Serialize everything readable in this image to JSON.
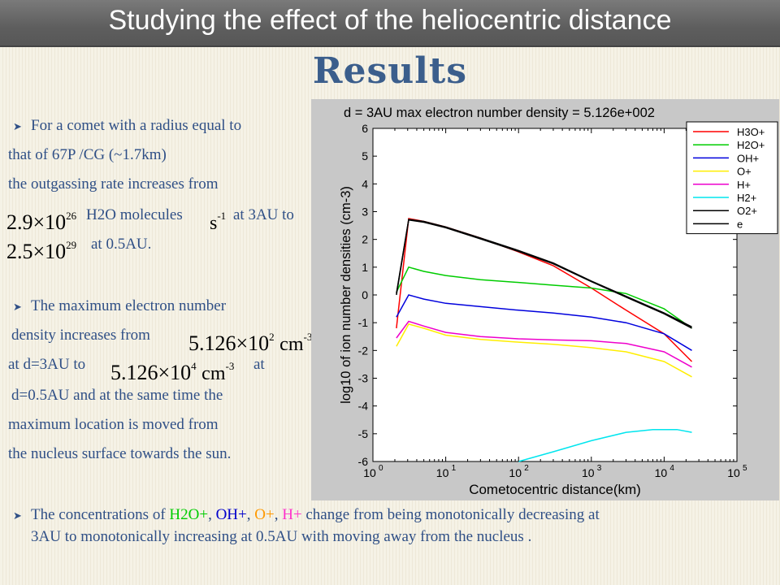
{
  "header": {
    "title": "Studying the effect of the heliocentric distance"
  },
  "heading": "Results",
  "bullets": {
    "b1": {
      "l1": "For a comet with a radius equal to",
      "l2": "that of  67P /CG (~1.7km)",
      "l3": "the outgassing rate increases from",
      "f1": {
        "mantissa": "2.9",
        "exp": "26"
      },
      "l4a": "H2O molecules",
      "unit_s": "s",
      "unit_s_exp": "-1",
      "l4b": "at 3AU to",
      "f2": {
        "mantissa": "2.5",
        "exp": "29"
      },
      "l5": "at 0.5AU."
    },
    "b2": {
      "l1": "The maximum electron  number",
      "l2": "density increases from",
      "f1": {
        "mantissa": "5.126",
        "exp": "2"
      },
      "unit": "cm",
      "unit_exp": "-3",
      "l3a": "at d=3AU to",
      "f2": {
        "mantissa": "5.126",
        "exp": "4"
      },
      "l3b": "at",
      "l4": "d=0.5AU and at the same time the",
      "l5": "maximum location is moved from",
      "l6": "the nucleus surface towards the sun."
    },
    "b3": {
      "pre": "The concentrations of",
      "sp1": "H2O+",
      "sep1": ",",
      "sp2": "OH+",
      "sep2": ",",
      "sp3": "O+",
      "sep3": ",",
      "sp4": "H+",
      "post": "change from being monotonically decreasing at",
      "line2": "3AU to monotonically increasing at 0.5AU with moving away from the nucleus ."
    }
  },
  "colors": {
    "title_bg": "#666666",
    "heading": "#3b5e8c",
    "body_text": "#2f4f86",
    "H2O+": "#00cc00",
    "OH+": "#0000cc",
    "O+": "#ff9900",
    "H+": "#ff33cc"
  },
  "chart_data": {
    "type": "line",
    "title": "d = 3AU   max electron number density = 5.126e+002",
    "xlabel": "Cometocentric distance(km)",
    "ylabel": "log10 of ion number densities (cm-3)",
    "x_scale": "log",
    "xlim": [
      1,
      100000
    ],
    "ylim": [
      -6,
      6
    ],
    "x_tick_exponents": [
      "0",
      "1",
      "2",
      "3",
      "4",
      "5"
    ],
    "x_tick_base": "10",
    "y_ticks": [
      "-6",
      "-5",
      "-4",
      "-3",
      "-2",
      "-1",
      "0",
      "1",
      "2",
      "3",
      "4",
      "5",
      "6"
    ],
    "grid": false,
    "legend_position": "top-right",
    "series": [
      {
        "name": "H3O+",
        "color": "#ff0000",
        "points": [
          [
            2.1,
            -1.2
          ],
          [
            3.1,
            2.75
          ],
          [
            5,
            2.65
          ],
          [
            10,
            2.45
          ],
          [
            30,
            2.05
          ],
          [
            100,
            1.55
          ],
          [
            300,
            1.05
          ],
          [
            1000,
            0.25
          ],
          [
            3000,
            -0.55
          ],
          [
            10000,
            -1.4
          ],
          [
            24000,
            -2.4
          ]
        ]
      },
      {
        "name": "H2O+",
        "color": "#00cc00",
        "points": [
          [
            2.1,
            0.1
          ],
          [
            3.1,
            1.0
          ],
          [
            5,
            0.85
          ],
          [
            10,
            0.7
          ],
          [
            30,
            0.55
          ],
          [
            100,
            0.45
          ],
          [
            300,
            0.35
          ],
          [
            1000,
            0.25
          ],
          [
            3000,
            0.05
          ],
          [
            10000,
            -0.5
          ],
          [
            24000,
            -1.2
          ]
        ]
      },
      {
        "name": "OH+",
        "color": "#0000dd",
        "points": [
          [
            2.1,
            -0.8
          ],
          [
            3.1,
            0.0
          ],
          [
            5,
            -0.15
          ],
          [
            10,
            -0.3
          ],
          [
            30,
            -0.42
          ],
          [
            100,
            -0.55
          ],
          [
            300,
            -0.65
          ],
          [
            1000,
            -0.8
          ],
          [
            3000,
            -1.0
          ],
          [
            10000,
            -1.4
          ],
          [
            24000,
            -2.0
          ]
        ]
      },
      {
        "name": "O+",
        "color": "#ffee00",
        "points": [
          [
            2.1,
            -1.85
          ],
          [
            3.1,
            -1.05
          ],
          [
            5,
            -1.2
          ],
          [
            10,
            -1.45
          ],
          [
            30,
            -1.6
          ],
          [
            100,
            -1.7
          ],
          [
            300,
            -1.78
          ],
          [
            1000,
            -1.9
          ],
          [
            3000,
            -2.05
          ],
          [
            10000,
            -2.4
          ],
          [
            24000,
            -2.95
          ]
        ]
      },
      {
        "name": "H+",
        "color": "#ee00cc",
        "points": [
          [
            2.1,
            -1.55
          ],
          [
            3.1,
            -0.95
          ],
          [
            5,
            -1.12
          ],
          [
            10,
            -1.35
          ],
          [
            30,
            -1.5
          ],
          [
            100,
            -1.58
          ],
          [
            300,
            -1.62
          ],
          [
            1000,
            -1.65
          ],
          [
            3000,
            -1.75
          ],
          [
            10000,
            -2.05
          ],
          [
            24000,
            -2.6
          ]
        ]
      },
      {
        "name": "H2+",
        "color": "#00e5ee",
        "points": [
          [
            100,
            -6.0
          ],
          [
            300,
            -5.65
          ],
          [
            1000,
            -5.25
          ],
          [
            3000,
            -4.95
          ],
          [
            7000,
            -4.85
          ],
          [
            15000,
            -4.85
          ],
          [
            24000,
            -4.95
          ]
        ]
      },
      {
        "name": "O2+",
        "color": "#000000",
        "points": [
          [
            2.1,
            0.05
          ],
          [
            3.1,
            2.72
          ],
          [
            5,
            2.65
          ],
          [
            10,
            2.45
          ],
          [
            30,
            2.05
          ],
          [
            100,
            1.6
          ],
          [
            300,
            1.15
          ],
          [
            1000,
            0.5
          ],
          [
            3000,
            -0.05
          ],
          [
            10000,
            -0.65
          ],
          [
            24000,
            -1.15
          ]
        ]
      },
      {
        "name": "e",
        "color": "#000000",
        "points": [
          [
            2.1,
            0.0
          ],
          [
            3.1,
            2.7
          ],
          [
            5,
            2.62
          ],
          [
            10,
            2.42
          ],
          [
            30,
            2.02
          ],
          [
            100,
            1.57
          ],
          [
            300,
            1.12
          ],
          [
            1000,
            0.48
          ],
          [
            3000,
            -0.08
          ],
          [
            10000,
            -0.68
          ],
          [
            24000,
            -1.2
          ]
        ]
      }
    ]
  }
}
